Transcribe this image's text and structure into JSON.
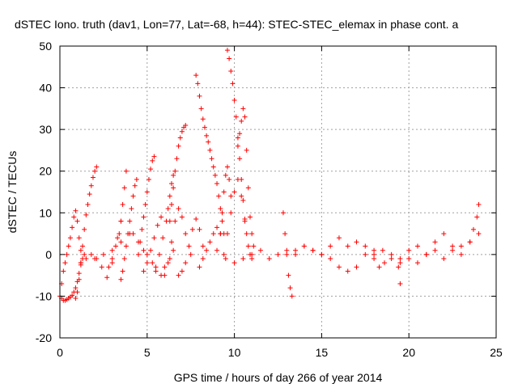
{
  "chart_data": {
    "type": "scatter",
    "title": "dSTEC Iono. truth (dav1, Lon=77, Lat=-68, h=44): STEC-STEC_elemax in phase cont. a",
    "xlabel": "GPS time / hours of day 266 of year 2014",
    "ylabel": "dSTEC  / TECUs",
    "xlim": [
      0,
      25
    ],
    "ylim": [
      -20,
      50
    ],
    "xticks": [
      0,
      5,
      10,
      15,
      20,
      25
    ],
    "yticks": [
      -20,
      -10,
      0,
      10,
      20,
      30,
      40,
      50
    ],
    "grid": true,
    "marker": "+",
    "color": "#ff0000",
    "series": [
      {
        "x": [
          0.0,
          0.1,
          0.2,
          0.3,
          0.4,
          0.5,
          0.6,
          0.7,
          0.8,
          0.9,
          1.0,
          1.1,
          1.2,
          1.3,
          1.4
        ],
        "y": [
          -10.0,
          -10.5,
          -11.0,
          -11.0,
          -10.8,
          -10.5,
          -10.2,
          -9.8,
          -9.0,
          -8.0,
          -6.5,
          -4.5,
          -2.5,
          -1.0,
          0.0
        ]
      },
      {
        "x": [
          0.1,
          0.2,
          0.3,
          0.4,
          0.5,
          0.6,
          0.7,
          0.8,
          0.9,
          1.0,
          1.1,
          1.2
        ],
        "y": [
          -7.0,
          -4.0,
          -2.0,
          0.0,
          2.0,
          4.0,
          6.5,
          9.0,
          10.5,
          8.0,
          4.0,
          1.0
        ]
      },
      {
        "x": [
          0.9,
          1.0,
          1.1,
          1.2,
          1.3,
          1.4,
          1.5,
          1.6,
          1.7,
          1.8,
          1.9,
          2.0,
          2.1
        ],
        "y": [
          -10.5,
          -9.0,
          -6.0,
          -2.0,
          2.0,
          6.0,
          9.5,
          12.0,
          14.5,
          16.5,
          18.5,
          20.0,
          21.0
        ]
      },
      {
        "x": [
          1.2,
          1.5,
          1.8,
          2.1,
          2.4,
          2.7,
          3.0,
          3.3,
          3.5
        ],
        "y": [
          -2.0,
          -1.0,
          0.0,
          -1.0,
          -3.0,
          -5.5,
          -2.0,
          4.0,
          8.0
        ]
      },
      {
        "x": [
          2.8,
          3.0,
          3.2,
          3.4,
          3.5,
          3.6,
          3.7,
          3.8
        ],
        "y": [
          -3.0,
          -1.0,
          2.0,
          5.0,
          8.0,
          12.0,
          16.0,
          20.0
        ]
      },
      {
        "x": [
          3.5,
          3.6,
          3.7,
          3.8,
          3.9,
          4.0,
          4.1,
          4.2,
          4.3,
          4.4
        ],
        "y": [
          -6.0,
          -4.0,
          -1.0,
          2.0,
          5.0,
          8.0,
          11.0,
          14.0,
          16.5,
          18.0
        ]
      },
      {
        "x": [
          2.0,
          2.5,
          3.0,
          3.5,
          4.0,
          4.2,
          4.5,
          4.8,
          5.0,
          5.3,
          5.5,
          5.8,
          6.0,
          6.3,
          6.5
        ],
        "y": [
          -1.0,
          0.0,
          1.0,
          3.0,
          5.0,
          5.0,
          3.0,
          1.0,
          0.0,
          -2.0,
          -4.0,
          -5.0,
          -3.0,
          -1.0,
          1.0
        ]
      },
      {
        "x": [
          4.5,
          4.6,
          4.7,
          4.8,
          4.9,
          5.0,
          5.1,
          5.2,
          5.3,
          5.4
        ],
        "y": [
          0.0,
          3.0,
          6.0,
          9.0,
          12.0,
          15.0,
          18.0,
          20.5,
          22.5,
          23.5
        ]
      },
      {
        "x": [
          4.8,
          5.0,
          5.2,
          5.4,
          5.6,
          5.8
        ],
        "y": [
          -4.0,
          -2.0,
          1.0,
          4.0,
          7.0,
          9.0
        ]
      },
      {
        "x": [
          5.5,
          5.7,
          5.9,
          6.1,
          6.2,
          6.3,
          6.4,
          6.5
        ],
        "y": [
          -3.0,
          0.0,
          4.0,
          8.0,
          11.0,
          14.0,
          17.0,
          19.0
        ]
      },
      {
        "x": [
          6.0,
          6.2,
          6.4,
          6.6,
          6.8,
          7.0,
          7.2,
          7.5
        ],
        "y": [
          -5.0,
          -2.0,
          3.0,
          8.0,
          11.0,
          9.0,
          5.0,
          0.0
        ]
      },
      {
        "x": [
          6.3,
          6.4,
          6.5,
          6.6,
          6.7,
          6.8,
          6.9,
          7.0,
          7.1,
          7.2
        ],
        "y": [
          8.0,
          12.0,
          16.0,
          20.0,
          23.0,
          26.0,
          28.0,
          29.5,
          30.5,
          31.0
        ]
      },
      {
        "x": [
          6.8,
          7.0,
          7.2,
          7.4,
          7.6,
          7.8,
          8.0,
          8.2
        ],
        "y": [
          -5.0,
          -4.0,
          -2.0,
          2.0,
          6.0,
          8.5,
          6.0,
          2.0
        ]
      },
      {
        "x": [
          7.8,
          7.9,
          8.0,
          8.1,
          8.2,
          8.3,
          8.4,
          8.5,
          8.6,
          8.7,
          8.8,
          8.9,
          9.0,
          9.1,
          9.2,
          9.3,
          9.4
        ],
        "y": [
          43.0,
          41.0,
          38.0,
          35.0,
          32.5,
          30.5,
          28.5,
          27.0,
          25.0,
          23.0,
          21.0,
          19.0,
          17.0,
          14.0,
          11.0,
          8.0,
          5.0
        ]
      },
      {
        "x": [
          8.0,
          8.2,
          8.4,
          8.6,
          8.8,
          9.0,
          9.2
        ],
        "y": [
          -3.0,
          -1.0,
          1.0,
          3.0,
          5.0,
          6.5,
          5.0
        ]
      },
      {
        "x": [
          9.2,
          9.3,
          9.4,
          9.5,
          9.6,
          9.7,
          9.8
        ],
        "y": [
          5.0,
          10.0,
          15.0,
          19.0,
          21.0,
          18.0,
          14.0
        ]
      },
      {
        "x": [
          9.6,
          9.7,
          9.8,
          9.9,
          10.0,
          10.1,
          10.2,
          10.3,
          10.4,
          10.5,
          10.6,
          10.7,
          10.8,
          10.9,
          11.0
        ],
        "y": [
          49.0,
          47.0,
          44.0,
          41.0,
          37.0,
          33.0,
          28.0,
          23.0,
          18.0,
          13.0,
          8.5,
          5.0,
          2.0,
          0.0,
          -1.0
        ]
      },
      {
        "x": [
          10.2,
          10.3,
          10.4,
          10.5,
          10.6,
          10.7,
          10.8,
          10.9,
          11.0,
          11.1
        ],
        "y": [
          26.0,
          29.0,
          32.0,
          35.0,
          33.0,
          25.0,
          16.0,
          9.0,
          5.0,
          2.0
        ]
      },
      {
        "x": [
          9.4,
          9.6,
          9.8,
          10.0,
          10.2,
          10.4,
          10.6
        ],
        "y": [
          0.0,
          5.0,
          10.0,
          15.0,
          18.0,
          14.0,
          8.0
        ]
      },
      {
        "x": [
          9.0,
          9.5,
          10.0,
          10.5,
          11.0,
          11.5,
          12.0,
          12.5,
          13.0,
          13.5,
          14.0,
          14.5,
          15.0,
          15.5,
          16.0,
          16.5,
          17.0,
          17.5,
          18.0
        ],
        "y": [
          1.0,
          -1.0,
          -2.0,
          -1.0,
          0.0,
          1.0,
          -1.0,
          0.0,
          1.0,
          0.0,
          2.0,
          1.0,
          0.0,
          -1.0,
          -3.0,
          -4.0,
          -3.0,
          0.0,
          1.0
        ]
      },
      {
        "x": [
          12.8,
          12.9,
          13.0,
          13.1,
          13.2,
          13.3
        ],
        "y": [
          10.0,
          5.0,
          0.0,
          -5.0,
          -8.0,
          -10.0
        ]
      },
      {
        "x": [
          13.5,
          14.0,
          14.5,
          15.0,
          15.5,
          16.0,
          16.5
        ],
        "y": [
          1.0,
          2.0,
          1.0,
          0.0,
          2.0,
          4.0,
          2.0
        ]
      },
      {
        "x": [
          17.0,
          17.5,
          18.0,
          18.3,
          18.6,
          19.0,
          19.4,
          19.5
        ],
        "y": [
          3.0,
          2.0,
          -1.0,
          -3.0,
          -2.0,
          -1.0,
          -3.0,
          -7.0
        ]
      },
      {
        "x": [
          18.0,
          18.5,
          19.0,
          19.5,
          20.0,
          20.5,
          21.0,
          21.5,
          22.0,
          22.5,
          23.0,
          23.5,
          24.0
        ],
        "y": [
          0.0,
          1.0,
          0.0,
          -1.0,
          1.0,
          2.0,
          0.0,
          3.0,
          5.0,
          1.0,
          2.0,
          3.0,
          5.0
        ]
      },
      {
        "x": [
          19.5,
          20.0,
          20.5,
          21.0,
          21.5,
          22.0,
          22.5,
          23.0,
          23.5,
          23.7,
          23.9,
          24.0
        ],
        "y": [
          -2.0,
          -1.0,
          -2.0,
          0.0,
          1.0,
          -1.0,
          2.0,
          0.0,
          3.0,
          6.0,
          9.0,
          12.0
        ]
      }
    ]
  }
}
